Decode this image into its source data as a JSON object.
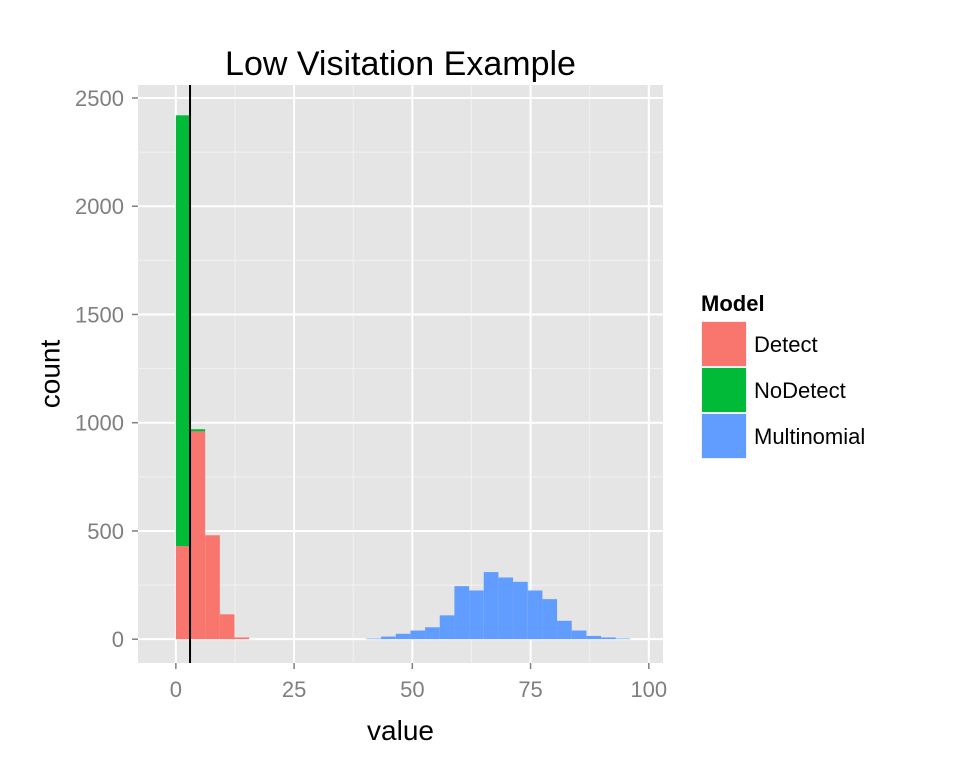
{
  "chart_data": {
    "type": "bar",
    "title": "Low Visitation Example",
    "xlabel": "value",
    "ylabel": "count",
    "xlim": [
      -8,
      103
    ],
    "ylim": [
      -110,
      2560
    ],
    "x_ticks": [
      0,
      25,
      50,
      75,
      100
    ],
    "y_ticks": [
      0,
      500,
      1000,
      1500,
      2000,
      2500
    ],
    "grid": true,
    "stacked": true,
    "bin_width": 3.1,
    "vline": 3,
    "legend": {
      "title": "Model",
      "position": "right"
    },
    "series": [
      {
        "name": "Detect",
        "color": "#F8766D",
        "x": [
          0,
          3.1,
          6.2,
          9.3,
          12.4
        ],
        "values": [
          430,
          960,
          480,
          115,
          8
        ]
      },
      {
        "name": "NoDetect",
        "color": "#00BA38",
        "x": [
          0,
          3.1
        ],
        "values": [
          1990,
          10
        ]
      },
      {
        "name": "Multinomial",
        "color": "#619CFF",
        "x": [
          40.3,
          43.4,
          46.5,
          49.6,
          52.7,
          55.8,
          58.9,
          62.0,
          65.1,
          68.2,
          71.3,
          74.4,
          77.5,
          80.6,
          83.7,
          86.8,
          89.9,
          93.0
        ],
        "values": [
          3,
          12,
          25,
          40,
          55,
          110,
          245,
          225,
          310,
          285,
          265,
          225,
          185,
          85,
          40,
          15,
          8,
          3
        ]
      }
    ]
  }
}
